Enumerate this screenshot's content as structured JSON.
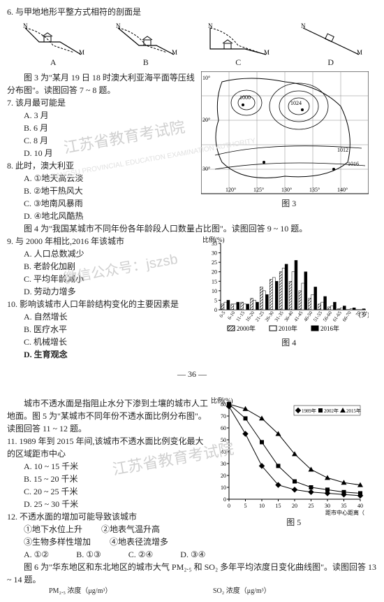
{
  "q6": {
    "stem": "6. 与甲地地形平整方式相符的剖面是",
    "options": [
      "A",
      "B",
      "C",
      "D"
    ]
  },
  "fig3_intro": "　　图 3 为\"某月 19 日 18 时澳大利亚海平面等压线分布图\"。读图回答 7 ~ 8 题。",
  "q7": {
    "stem": "7. 该月最可能是",
    "A": "A. 3 月",
    "B": "B. 6 月",
    "C": "C. 8 月",
    "D": "D. 10 月"
  },
  "q8": {
    "stem": "8. 此时，澳大利亚",
    "A": "A. ①地天高云淡",
    "B": "B. ②地干热风大",
    "C": "C. ③地南风暴雨",
    "D": "D. ④地北风酷热"
  },
  "fig3_label": "图 3",
  "fig4_intro": "　　图 4 为\"我国某城市不同年份各年龄段人口数量占比图\"。读图回答 9 ~ 10 题。",
  "q9": {
    "stem": "9. 与 2000 年相比,2016 年该城市",
    "A": "A. 人口总数减少",
    "B": "B. 老龄化加剧",
    "C": "C. 平均年龄减小",
    "D": "D. 劳动力增多"
  },
  "q10": {
    "stem": "10. 影响该城市人口年龄结构变化的主要因素是",
    "A": "A. 自然增长",
    "B": "B. 医疗水平",
    "C": "C. 机械增长",
    "D": "D. 生育观念"
  },
  "fig4": {
    "ylabel": "比例(%)",
    "ymax": 35,
    "yticks": [
      0,
      5,
      10,
      15,
      20,
      25,
      30,
      35
    ],
    "xlabel": "(岁)",
    "categories": [
      "0-5",
      "6-10",
      "11-15",
      "16-20",
      "21-25",
      "26-30",
      "31-35",
      "36-40",
      "41-45",
      "46-50",
      "51-55",
      "56-60",
      "61-65",
      "66-70",
      "70"
    ],
    "series": {
      "2000": {
        "label": "2000年",
        "pattern": "diag",
        "values": [
          3,
          3,
          4,
          6,
          12,
          16,
          20,
          15,
          10,
          6,
          3,
          1.5,
          0.5,
          0,
          0
        ]
      },
      "2010": {
        "label": "2010年",
        "pattern": "empty",
        "values": [
          4,
          3,
          3,
          5,
          10,
          17,
          22,
          20,
          14,
          8,
          4,
          2,
          1,
          0.5,
          0
        ]
      },
      "2016": {
        "label": "2016年",
        "pattern": "solid",
        "values": [
          5,
          4,
          3,
          4,
          8,
          15,
          24,
          26,
          20,
          12,
          7,
          4,
          2,
          1,
          0.5
        ]
      }
    },
    "label": "图 4"
  },
  "page_num": "— 36 —",
  "impervious_intro": "　　城市不透水面是指阻止水分下渗到土壤的城市人工地面。图 5 为\"某城市不同年份不透水面比例分布图\"。读图回答 11 ~ 12 题。",
  "q11": {
    "stem": "11. 1989 年到 2015 年间,该城市不透水面比例变化最大的区域距市中心",
    "A": "A. 10 ~ 15 千米",
    "B": "B. 15 ~ 20 千米",
    "C": "C. 20 ~ 25 千米",
    "D": "D. 25 ~ 30 千米"
  },
  "q12": {
    "stem": "12. 不透水面的增加可能导致该城市",
    "sub1": "①地下水位上升",
    "sub2": "②地表气温升高",
    "sub3": "③生物多样性增加",
    "sub4": "④地表径流增多",
    "A": "A. ①②",
    "B": "B. ①③",
    "C": "C. ②④",
    "D": "D. ③④"
  },
  "fig5": {
    "ylabel": "比例(%)",
    "ymax": 80,
    "yticks": [
      0,
      10,
      20,
      30,
      40,
      50,
      60,
      70,
      80
    ],
    "xlabel": "距市中心距离（km）",
    "xticks": [
      0,
      5,
      10,
      15,
      20,
      25,
      30,
      35,
      40
    ],
    "series": {
      "1989": {
        "label": "1989年",
        "marker": "diamond",
        "values": [
          78,
          55,
          28,
          12,
          8,
          6,
          5,
          4,
          3
        ]
      },
      "2002": {
        "label": "2002年",
        "marker": "square",
        "values": [
          80,
          68,
          48,
          28,
          15,
          10,
          8,
          6,
          5
        ]
      },
      "2015": {
        "label": "2015年",
        "marker": "triangle",
        "values": [
          80,
          76,
          68,
          55,
          38,
          25,
          18,
          14,
          12
        ]
      }
    },
    "label": "图 5"
  },
  "fig6_intro": "　　图 6 为\"华东地区和东北地区的城市大气 PM₂.₅ 和 SO₂ 多年平均浓度日变化曲线图\"。读图回答 13 ~ 14 题。",
  "fig6_xlabel_left": "PM₂.₅ 浓度（μg/m³）",
  "fig6_xlabel_right": "SO₂ 浓度（μg/m³）",
  "watermarks": {
    "w1": "江苏省教育考试院",
    "w1en": "JIANGSU PROVINCIAL EDUCATION EXAMINATION AUTHORITY",
    "w2": "微信公众号：jszsb",
    "w3": "江苏省教育考试院"
  }
}
